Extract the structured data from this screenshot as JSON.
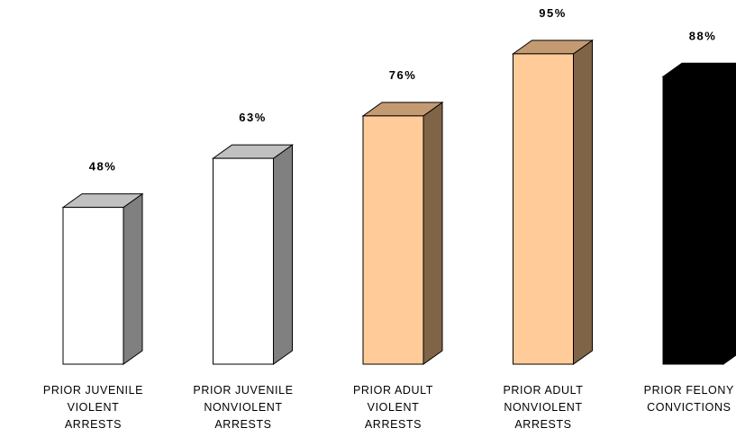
{
  "chart_data": {
    "type": "bar",
    "title": "",
    "xlabel": "",
    "ylabel": "",
    "ylim": [
      0,
      100
    ],
    "grid": false,
    "legend": "none",
    "style": "3d-column",
    "categories": [
      [
        "PRIOR JUVENILE",
        "VIOLENT",
        "ARRESTS"
      ],
      [
        "PRIOR JUVENILE",
        "NONVIOLENT",
        "ARRESTS"
      ],
      [
        "PRIOR ADULT",
        "VIOLENT",
        "ARRESTS"
      ],
      [
        "PRIOR ADULT",
        "NONVIOLENT",
        "ARRESTS"
      ],
      [
        "PRIOR FELONY",
        "CONVICTIONS"
      ]
    ],
    "values": [
      48,
      63,
      76,
      95,
      88
    ],
    "value_labels": [
      "48%",
      "63%",
      "76%",
      "95%",
      "88%"
    ],
    "bar_colors": [
      {
        "front": "#ffffff",
        "top": "#c0c0c0",
        "side": "#808080"
      },
      {
        "front": "#ffffff",
        "top": "#c0c0c0",
        "side": "#808080"
      },
      {
        "front": "#ffcc99",
        "top": "#c49a72",
        "side": "#806448"
      },
      {
        "front": "#ffcc99",
        "top": "#c49a72",
        "side": "#806448"
      },
      {
        "front": "#000000",
        "top": "#000000",
        "side": "#000000"
      }
    ]
  }
}
